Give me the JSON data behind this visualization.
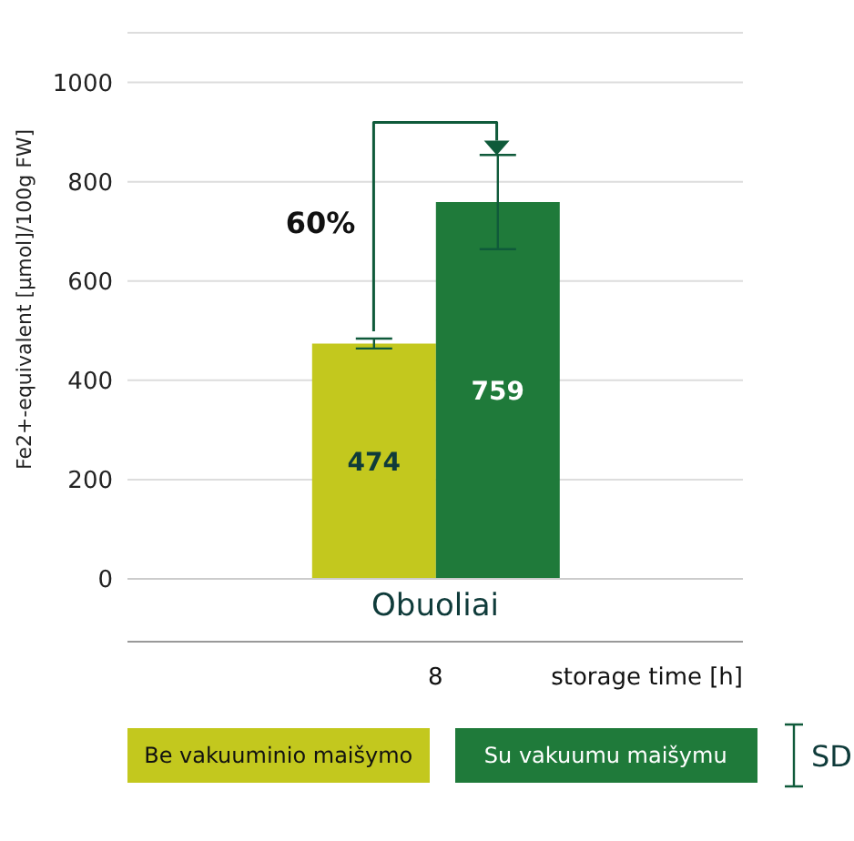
{
  "chart_data": {
    "type": "bar",
    "categories": [
      "Obuoliai"
    ],
    "series": [
      {
        "name": "Be vakuuminio maišymo",
        "color": "#c3c81e",
        "values": [
          474
        ],
        "errors": [
          10
        ]
      },
      {
        "name": "Su vakuumu maišymu",
        "color": "#1f7a3a",
        "values": [
          759
        ],
        "errors": [
          95
        ]
      }
    ],
    "ylabel": "Fe2+-equivalent [µmol]/100g FW]",
    "xlabel": "storage time [h]",
    "ylim": [
      0,
      1100
    ],
    "yticks": [
      0,
      200,
      400,
      600,
      800,
      1000
    ],
    "grid": "y",
    "legend": "bottom",
    "data_labels": true,
    "annotations": [
      "60%",
      "8",
      "SD"
    ]
  }
}
